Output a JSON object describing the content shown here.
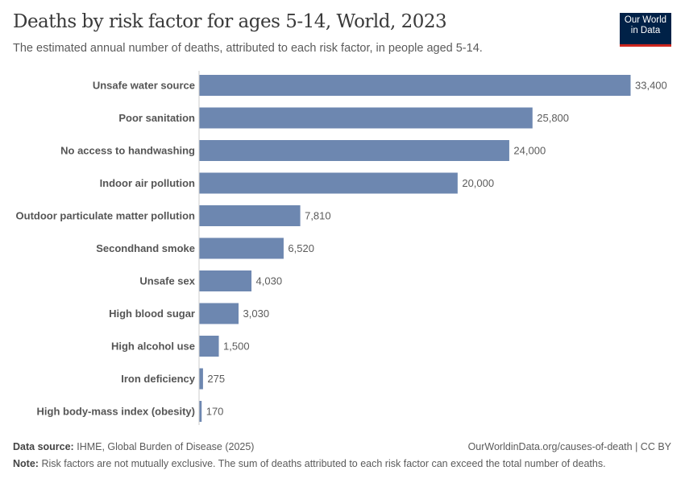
{
  "title": "Deaths by risk factor for ages 5-14, World, 2023",
  "subtitle": "The estimated annual number of deaths, attributed to each risk factor, in people aged 5-14.",
  "logo": {
    "line1": "Our World",
    "line2": "in Data"
  },
  "footer": {
    "source_label": "Data source:",
    "source": "IHME, Global Burden of Disease (2025)",
    "url": "OurWorldinData.org/causes-of-death | CC BY",
    "note_label": "Note:",
    "note": "Risk factors are not mutually exclusive. The sum of deaths attributed to each risk factor can exceed the total number of deaths."
  },
  "chart_data": {
    "type": "bar",
    "orientation": "horizontal",
    "bar_color": "#6d87b0",
    "categories": [
      "Unsafe water source",
      "Poor sanitation",
      "No access to handwashing",
      "Indoor air pollution",
      "Outdoor particulate matter pollution",
      "Secondhand smoke",
      "Unsafe sex",
      "High blood sugar",
      "High alcohol use",
      "Iron deficiency",
      "High body-mass index (obesity)"
    ],
    "values": [
      33400,
      25800,
      24000,
      20000,
      7810,
      6520,
      4030,
      3030,
      1500,
      275,
      170
    ],
    "labels": [
      "33,400",
      "25,800",
      "24,000",
      "20,000",
      "7,810",
      "6,520",
      "4,030",
      "3,030",
      "1,500",
      "275",
      "170"
    ]
  }
}
